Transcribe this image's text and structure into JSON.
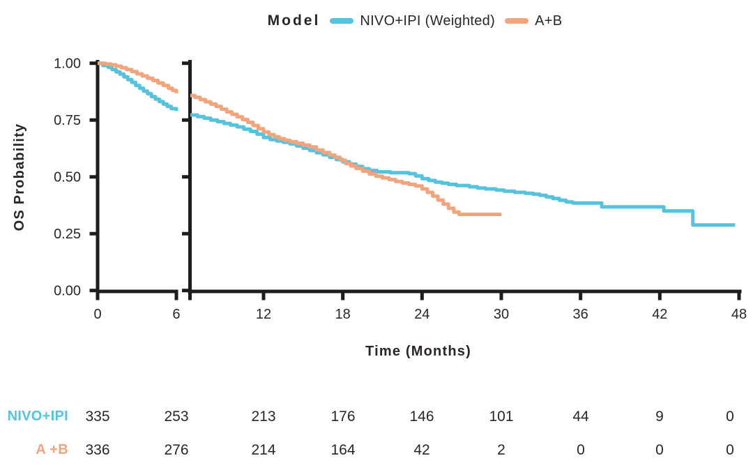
{
  "legend": {
    "title": "Model",
    "items": [
      {
        "label": "NIVO+IPI (Weighted)",
        "color": "#55c3dd"
      },
      {
        "label": "A+B",
        "color": "#f2a57d"
      }
    ]
  },
  "chart_data": {
    "type": "line",
    "subtype": "kaplan-meier-step",
    "title": "",
    "xlabel": "Time (Months)",
    "ylabel": "OS Probability",
    "axis_color": "#1d1d1d",
    "grid": false,
    "ylim": [
      0.0,
      1.0
    ],
    "y_ticks": [
      {
        "label": "1.00",
        "value": 1.0
      },
      {
        "label": "0.75",
        "value": 0.75
      },
      {
        "label": "0.50",
        "value": 0.5
      },
      {
        "label": "0.25",
        "value": 0.25
      },
      {
        "label": "0.00",
        "value": 0.0
      }
    ],
    "x_axis_break": {
      "left_panel_months": [
        0,
        6
      ],
      "right_panel_months": [
        6.4,
        48
      ]
    },
    "x_ticks_left": [
      0,
      6
    ],
    "x_ticks_right": [
      12,
      18,
      24,
      30,
      36,
      42,
      48
    ],
    "series": [
      {
        "name": "NIVO+IPI (Weighted)",
        "color": "#55c3dd",
        "points": [
          [
            0,
            1.0
          ],
          [
            0.4,
            0.99
          ],
          [
            0.8,
            0.982
          ],
          [
            1.1,
            0.972
          ],
          [
            1.4,
            0.962
          ],
          [
            1.7,
            0.952
          ],
          [
            2.0,
            0.94
          ],
          [
            2.3,
            0.928
          ],
          [
            2.6,
            0.916
          ],
          [
            2.9,
            0.902
          ],
          [
            3.2,
            0.89
          ],
          [
            3.5,
            0.877
          ],
          [
            3.8,
            0.866
          ],
          [
            4.1,
            0.853
          ],
          [
            4.4,
            0.842
          ],
          [
            4.7,
            0.831
          ],
          [
            5.0,
            0.82
          ],
          [
            5.3,
            0.81
          ],
          [
            5.6,
            0.8
          ],
          [
            6.0,
            0.79
          ],
          [
            6.45,
            0.772
          ],
          [
            7.0,
            0.765
          ],
          [
            7.5,
            0.758
          ],
          [
            8.0,
            0.75
          ],
          [
            8.5,
            0.743
          ],
          [
            9.0,
            0.735
          ],
          [
            9.5,
            0.728
          ],
          [
            10.0,
            0.72
          ],
          [
            10.5,
            0.71
          ],
          [
            11.0,
            0.7
          ],
          [
            11.5,
            0.688
          ],
          [
            12.0,
            0.673
          ],
          [
            12.5,
            0.664
          ],
          [
            13.0,
            0.658
          ],
          [
            13.5,
            0.652
          ],
          [
            14.0,
            0.645
          ],
          [
            14.5,
            0.636
          ],
          [
            15.0,
            0.626
          ],
          [
            15.5,
            0.616
          ],
          [
            16.0,
            0.606
          ],
          [
            16.5,
            0.597
          ],
          [
            17.0,
            0.586
          ],
          [
            17.5,
            0.576
          ],
          [
            18.0,
            0.566
          ],
          [
            18.5,
            0.556
          ],
          [
            19.0,
            0.546
          ],
          [
            19.5,
            0.536
          ],
          [
            20.0,
            0.528
          ],
          [
            20.6,
            0.522
          ],
          [
            21.6,
            0.518
          ],
          [
            23.0,
            0.514
          ],
          [
            23.5,
            0.504
          ],
          [
            24.0,
            0.492
          ],
          [
            24.5,
            0.484
          ],
          [
            25.0,
            0.477
          ],
          [
            25.5,
            0.472
          ],
          [
            26.0,
            0.467
          ],
          [
            26.6,
            0.462
          ],
          [
            27.6,
            0.456
          ],
          [
            28.2,
            0.451
          ],
          [
            28.8,
            0.447
          ],
          [
            29.6,
            0.442
          ],
          [
            30.2,
            0.437
          ],
          [
            31.0,
            0.432
          ],
          [
            31.8,
            0.428
          ],
          [
            32.4,
            0.424
          ],
          [
            32.9,
            0.419
          ],
          [
            33.4,
            0.412
          ],
          [
            33.9,
            0.405
          ],
          [
            34.4,
            0.397
          ],
          [
            34.9,
            0.39
          ],
          [
            35.4,
            0.385
          ],
          [
            37.6,
            0.368
          ],
          [
            42.3,
            0.35
          ],
          [
            44.5,
            0.288
          ],
          [
            47.7,
            0.288
          ]
        ]
      },
      {
        "name": "A+B",
        "color": "#f2a57d",
        "points": [
          [
            0,
            1.0
          ],
          [
            0.6,
            0.997
          ],
          [
            1.0,
            0.993
          ],
          [
            1.4,
            0.987
          ],
          [
            1.8,
            0.98
          ],
          [
            2.2,
            0.972
          ],
          [
            2.6,
            0.963
          ],
          [
            3.0,
            0.953
          ],
          [
            3.4,
            0.944
          ],
          [
            3.8,
            0.934
          ],
          [
            4.2,
            0.924
          ],
          [
            4.6,
            0.913
          ],
          [
            5.0,
            0.902
          ],
          [
            5.4,
            0.89
          ],
          [
            5.7,
            0.88
          ],
          [
            6.0,
            0.868
          ],
          [
            6.45,
            0.858
          ],
          [
            6.8,
            0.85
          ],
          [
            7.2,
            0.84
          ],
          [
            7.6,
            0.83
          ],
          [
            8.0,
            0.82
          ],
          [
            8.4,
            0.81
          ],
          [
            8.8,
            0.798
          ],
          [
            9.2,
            0.786
          ],
          [
            9.6,
            0.775
          ],
          [
            10.0,
            0.764
          ],
          [
            10.4,
            0.752
          ],
          [
            10.8,
            0.74
          ],
          [
            11.2,
            0.726
          ],
          [
            11.6,
            0.712
          ],
          [
            12.0,
            0.698
          ],
          [
            12.4,
            0.686
          ],
          [
            12.8,
            0.676
          ],
          [
            13.2,
            0.668
          ],
          [
            13.6,
            0.661
          ],
          [
            14.0,
            0.655
          ],
          [
            14.5,
            0.648
          ],
          [
            15.0,
            0.64
          ],
          [
            15.5,
            0.632
          ],
          [
            16.0,
            0.618
          ],
          [
            16.5,
            0.607
          ],
          [
            17.0,
            0.596
          ],
          [
            17.4,
            0.586
          ],
          [
            17.8,
            0.573
          ],
          [
            18.2,
            0.559
          ],
          [
            18.6,
            0.548
          ],
          [
            19.0,
            0.537
          ],
          [
            19.5,
            0.525
          ],
          [
            20.0,
            0.513
          ],
          [
            20.5,
            0.503
          ],
          [
            21.0,
            0.495
          ],
          [
            21.5,
            0.488
          ],
          [
            22.0,
            0.48
          ],
          [
            22.5,
            0.473
          ],
          [
            23.0,
            0.467
          ],
          [
            23.5,
            0.46
          ],
          [
            24.0,
            0.447
          ],
          [
            24.4,
            0.432
          ],
          [
            24.8,
            0.415
          ],
          [
            25.2,
            0.398
          ],
          [
            25.6,
            0.38
          ],
          [
            26.0,
            0.362
          ],
          [
            26.4,
            0.345
          ],
          [
            26.8,
            0.335
          ],
          [
            30.0,
            0.335
          ]
        ]
      }
    ]
  },
  "risk_table": {
    "time_points": [
      0,
      6,
      12,
      18,
      24,
      30,
      36,
      42,
      48
    ],
    "rows": [
      {
        "label": "NIVO+IPI",
        "color": "#55c3dd",
        "values": [
          "335",
          "253",
          "213",
          "176",
          "146",
          "101",
          "44",
          "9",
          "0"
        ]
      },
      {
        "label": "A +B",
        "color": "#f2a57d",
        "values": [
          "336",
          "276",
          "214",
          "164",
          "42",
          "2",
          "0",
          "0",
          "0"
        ]
      }
    ]
  }
}
